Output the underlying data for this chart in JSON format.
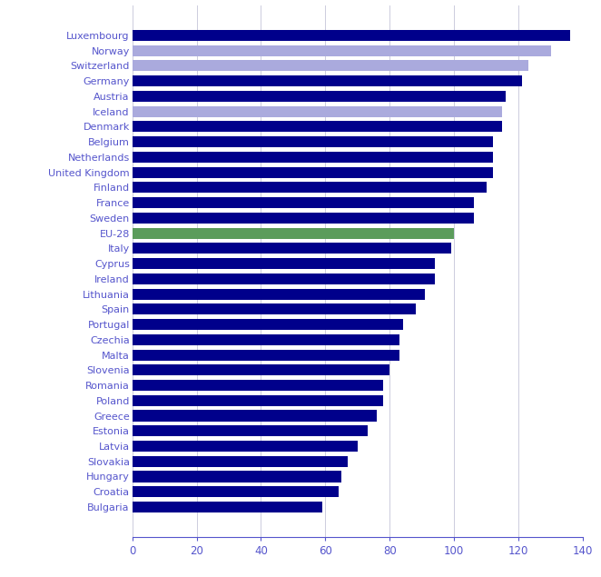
{
  "countries": [
    "Luxembourg",
    "Norway",
    "Switzerland",
    "Germany",
    "Austria",
    "Iceland",
    "Denmark",
    "Belgium",
    "Netherlands",
    "United Kingdom",
    "Finland",
    "France",
    "Sweden",
    "EU-28",
    "Italy",
    "Cyprus",
    "Ireland",
    "Lithuania",
    "Spain",
    "Portugal",
    "Czechia",
    "Malta",
    "Slovenia",
    "Romania",
    "Poland",
    "Greece",
    "Estonia",
    "Latvia",
    "Slovakia",
    "Hungary",
    "Croatia",
    "Bulgaria"
  ],
  "values": [
    136,
    130,
    123,
    121,
    116,
    115,
    115,
    112,
    112,
    112,
    110,
    106,
    106,
    100,
    99,
    94,
    94,
    91,
    88,
    84,
    83,
    83,
    80,
    78,
    78,
    76,
    73,
    70,
    67,
    65,
    64,
    59
  ],
  "colors": [
    "#00008B",
    "#AAAADD",
    "#AAAADD",
    "#00008B",
    "#00008B",
    "#AAAADD",
    "#00008B",
    "#00008B",
    "#00008B",
    "#00008B",
    "#00008B",
    "#00008B",
    "#00008B",
    "#5B9C5B",
    "#00008B",
    "#00008B",
    "#00008B",
    "#00008B",
    "#00008B",
    "#00008B",
    "#00008B",
    "#00008B",
    "#00008B",
    "#00008B",
    "#00008B",
    "#00008B",
    "#00008B",
    "#00008B",
    "#00008B",
    "#00008B",
    "#00008B",
    "#00008B"
  ],
  "xlim": [
    0,
    140
  ],
  "xticks": [
    0,
    20,
    40,
    60,
    80,
    100,
    120,
    140
  ],
  "label_color": "#5555CC",
  "tick_color": "#5555CC",
  "grid_color": "#CCCCDD",
  "background_color": "#FFFFFF",
  "bar_height": 0.72,
  "fontsize_ytick": 8.0,
  "fontsize_xtick": 8.5
}
